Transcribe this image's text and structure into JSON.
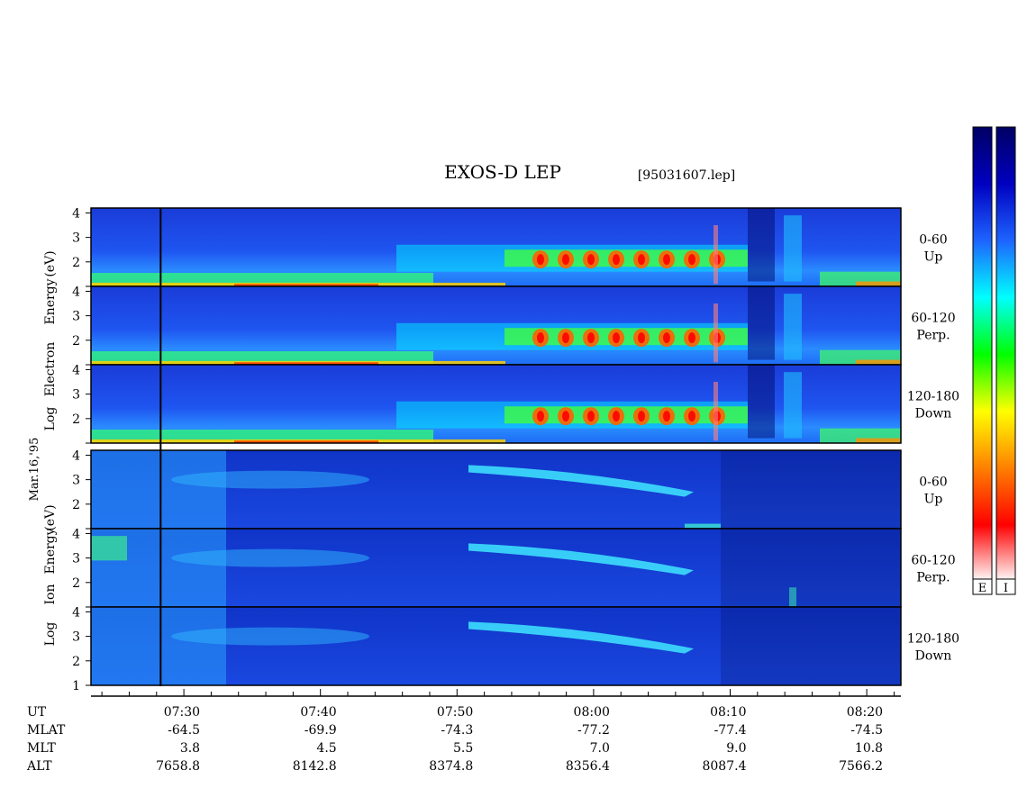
{
  "title": "EXOS-D LEP",
  "file_label": "[95031607.lep]",
  "date_label": "Mar.16,'95",
  "colorbar": {
    "labels": [
      "E",
      "I"
    ],
    "stops": [
      "#ffffff",
      "#ff0000",
      "#ff8000",
      "#ffff00",
      "#00ff00",
      "#00ffff",
      "#1e64ff",
      "#0000c0",
      "#000064"
    ]
  },
  "chart_data": {
    "type": "heatmap",
    "ylim": [
      1,
      4.2
    ],
    "yticks": [
      2,
      3,
      4
    ],
    "yticks_bottom": [
      1,
      2,
      3,
      4
    ],
    "x_time_ticks": [
      "07:30",
      "07:40",
      "07:50",
      "08:00",
      "08:10",
      "08:20"
    ],
    "x_time_minutes": [
      30,
      40,
      50,
      60,
      70,
      80
    ],
    "x_range_minutes": [
      23.2,
      82.5
    ],
    "marker_minute": 28.3,
    "groups": [
      {
        "name": "Electron",
        "ylabel": [
          "Log",
          "Electron",
          "Energy",
          "(eV)"
        ],
        "panels": [
          {
            "angle": "0-60",
            "dir": "Up"
          },
          {
            "angle": "60-120",
            "dir": "Perp."
          },
          {
            "angle": "120-180",
            "dir": "Down"
          }
        ]
      },
      {
        "name": "Ion",
        "ylabel": [
          "Log",
          "Ion",
          "Energy",
          "(eV)"
        ],
        "panels": [
          {
            "angle": "0-60",
            "dir": "Up"
          },
          {
            "angle": "60-120",
            "dir": "Perp."
          },
          {
            "angle": "120-180",
            "dir": "Down"
          }
        ]
      }
    ],
    "ephemeris": [
      {
        "label": "UT",
        "values": [
          "07:30",
          "07:40",
          "07:50",
          "08:00",
          "08:10",
          "08:20"
        ]
      },
      {
        "label": "MLAT",
        "values": [
          "-64.5",
          "-69.9",
          "-74.3",
          "-77.2",
          "-77.4",
          "-74.5"
        ]
      },
      {
        "label": "MLT",
        "values": [
          "3.8",
          "4.5",
          "5.5",
          "7.0",
          "9.0",
          "10.8"
        ]
      },
      {
        "label": "ALT",
        "values": [
          "7658.8",
          "8142.8",
          "8374.8",
          "8356.4",
          "8087.4",
          "7566.2"
        ]
      }
    ]
  }
}
